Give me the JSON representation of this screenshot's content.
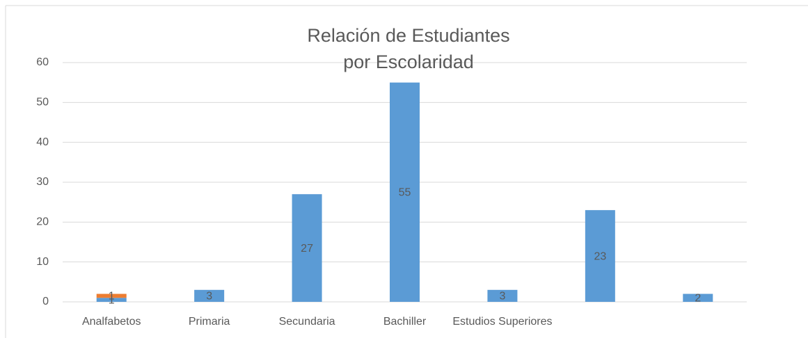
{
  "chart_data": {
    "type": "bar",
    "stacked": true,
    "title": "Relación de Estudiantes por Escolaridad",
    "categories": [
      "Analfabetos",
      "Primaria",
      "Secundaria",
      "Bachiller",
      "Estudios Superiores",
      null,
      null
    ],
    "series": [
      {
        "color": "#5b9bd5",
        "values": [
          1,
          3,
          27,
          55,
          3,
          23,
          2
        ]
      },
      {
        "color": "#ed7d31",
        "values": [
          1,
          null,
          null,
          null,
          null,
          null,
          null
        ]
      }
    ],
    "ylim": [
      0,
      60
    ],
    "yticks": [
      0,
      10,
      20,
      30,
      40,
      50,
      60
    ],
    "grid": true,
    "data_labels": true
  }
}
